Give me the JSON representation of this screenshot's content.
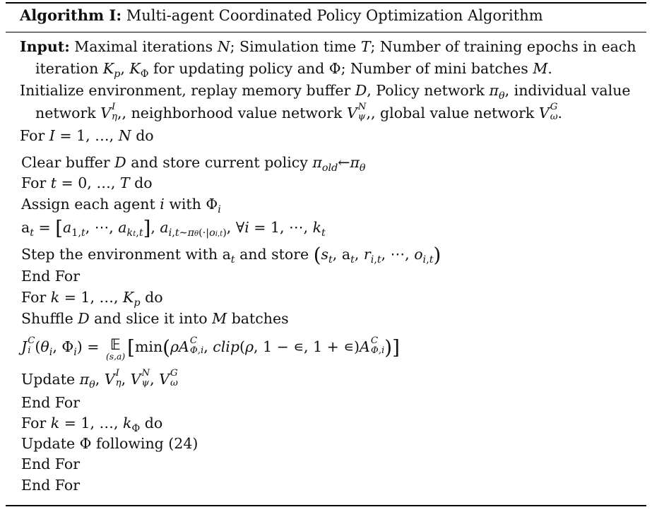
{
  "algorithm": {
    "label": "Algorithm I:",
    "title": "Multi-agent Coordinated Policy Optimization Algorithm"
  },
  "text": {
    "input_label": "Input:",
    "input_1a": " Maximal iterations ",
    "input_1b": "; Simulation time ",
    "input_1c": "; Number of training epochs in each",
    "input_2a": "iteration ",
    "input_2b": " for updating policy and ",
    "input_2c": "; Number of mini batches ",
    "init_1a": "Initialize environment, replay memory buffer ",
    "init_1b": ", Policy network ",
    "init_1c": ", individual value",
    "init_2a": "network ",
    "init_2b": ", neighborhood value network ",
    "init_2c": ", global value network ",
    "for_kw": "For",
    "do_kw": "do",
    "end_for": "End For",
    "clear_a": "Clear buffer ",
    "clear_b": " and store current policy ",
    "assign": "Assign each agent ",
    "with": " with ",
    "step_a": "Step the environment with ",
    "step_b": " and store ",
    "shuffle_a": "Shuffle ",
    "shuffle_b": " and slice it into ",
    "shuffle_c": " batches",
    "update": "Update ",
    "update_phi": "Update Φ following (24)"
  }
}
